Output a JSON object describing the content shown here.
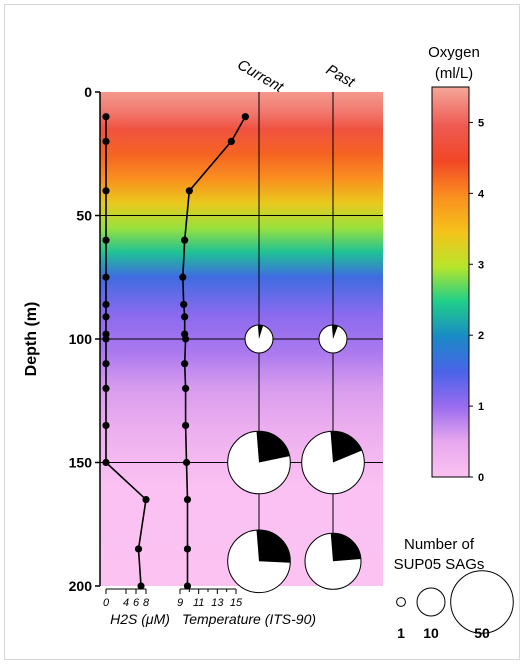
{
  "chart_data": {
    "type": "scatter",
    "ylabel": "Depth (m)",
    "yticks": [
      0,
      50,
      100,
      150,
      200
    ],
    "ylim": [
      0,
      200
    ],
    "y_reversed": true,
    "columns": [
      "Current",
      "Past"
    ],
    "h2s": {
      "xlabel": "H2S (μM)",
      "xticks": [
        0,
        4,
        6,
        8
      ],
      "xlim": [
        0,
        9
      ],
      "points": [
        {
          "x": 0,
          "y": 10
        },
        {
          "x": 0,
          "y": 20
        },
        {
          "x": 0,
          "y": 40
        },
        {
          "x": 0,
          "y": 60
        },
        {
          "x": 0,
          "y": 75
        },
        {
          "x": 0,
          "y": 86
        },
        {
          "x": 0,
          "y": 91
        },
        {
          "x": 0,
          "y": 98
        },
        {
          "x": 0,
          "y": 100
        },
        {
          "x": 0,
          "y": 110
        },
        {
          "x": 0,
          "y": 120
        },
        {
          "x": 0,
          "y": 135
        },
        {
          "x": 0,
          "y": 150
        },
        {
          "x": 8,
          "y": 165
        },
        {
          "x": 6.5,
          "y": 185
        },
        {
          "x": 7,
          "y": 200
        }
      ]
    },
    "temperature": {
      "xlabel": "Temperature (ITS-90)",
      "xticks": [
        9,
        11,
        13,
        15
      ],
      "xlim": [
        8,
        16.5
      ],
      "points": [
        {
          "x": 16,
          "y": 10
        },
        {
          "x": 14.5,
          "y": 20
        },
        {
          "x": 10,
          "y": 40
        },
        {
          "x": 9.5,
          "y": 60
        },
        {
          "x": 9.3,
          "y": 75
        },
        {
          "x": 9.4,
          "y": 86
        },
        {
          "x": 9.5,
          "y": 91
        },
        {
          "x": 9.5,
          "y": 98
        },
        {
          "x": 9.6,
          "y": 100
        },
        {
          "x": 9.5,
          "y": 110
        },
        {
          "x": 9.6,
          "y": 120
        },
        {
          "x": 9.6,
          "y": 135
        },
        {
          "x": 9.7,
          "y": 150
        },
        {
          "x": 9.8,
          "y": 165
        },
        {
          "x": 9.8,
          "y": 185
        },
        {
          "x": 9.8,
          "y": 200
        }
      ]
    },
    "sag_pies": [
      {
        "column": "Current",
        "depth": 100,
        "size": 10,
        "black_fraction": 0.06
      },
      {
        "column": "Past",
        "depth": 100,
        "size": 10,
        "black_fraction": 0.07
      },
      {
        "column": "Current",
        "depth": 150,
        "size": 50,
        "black_fraction": 0.23
      },
      {
        "column": "Past",
        "depth": 150,
        "size": 50,
        "black_fraction": 0.2
      },
      {
        "column": "Current",
        "depth": 190,
        "size": 50,
        "black_fraction": 0.27
      },
      {
        "column": "Past",
        "depth": 190,
        "size": 40,
        "black_fraction": 0.25
      }
    ],
    "oxygen": {
      "title": "Oxygen",
      "unit": "(ml/L)",
      "ticks": [
        0,
        1,
        2,
        3,
        4,
        5
      ],
      "range": [
        0,
        5.5
      ],
      "profile": [
        {
          "depth": 0,
          "value": 5.4
        },
        {
          "depth": 8,
          "value": 5.2
        },
        {
          "depth": 15,
          "value": 4.8
        },
        {
          "depth": 25,
          "value": 4.3
        },
        {
          "depth": 35,
          "value": 4.0
        },
        {
          "depth": 45,
          "value": 3.4
        },
        {
          "depth": 55,
          "value": 2.9
        },
        {
          "depth": 65,
          "value": 2.4
        },
        {
          "depth": 75,
          "value": 1.6
        },
        {
          "depth": 90,
          "value": 1.1
        },
        {
          "depth": 105,
          "value": 0.9
        },
        {
          "depth": 120,
          "value": 0.6
        },
        {
          "depth": 135,
          "value": 0.4
        },
        {
          "depth": 150,
          "value": 0.15
        },
        {
          "depth": 160,
          "value": 0.02
        },
        {
          "depth": 200,
          "value": 0.0
        }
      ]
    },
    "size_legend": {
      "title_line1": "Number of",
      "title_line2": "SUP05 SAGs",
      "items": [
        1,
        10,
        50
      ],
      "labels": [
        "1",
        "10",
        "50"
      ]
    }
  },
  "colors": {
    "slice": "#000000",
    "pie_fill": "#ffffff",
    "line": "#000000"
  }
}
